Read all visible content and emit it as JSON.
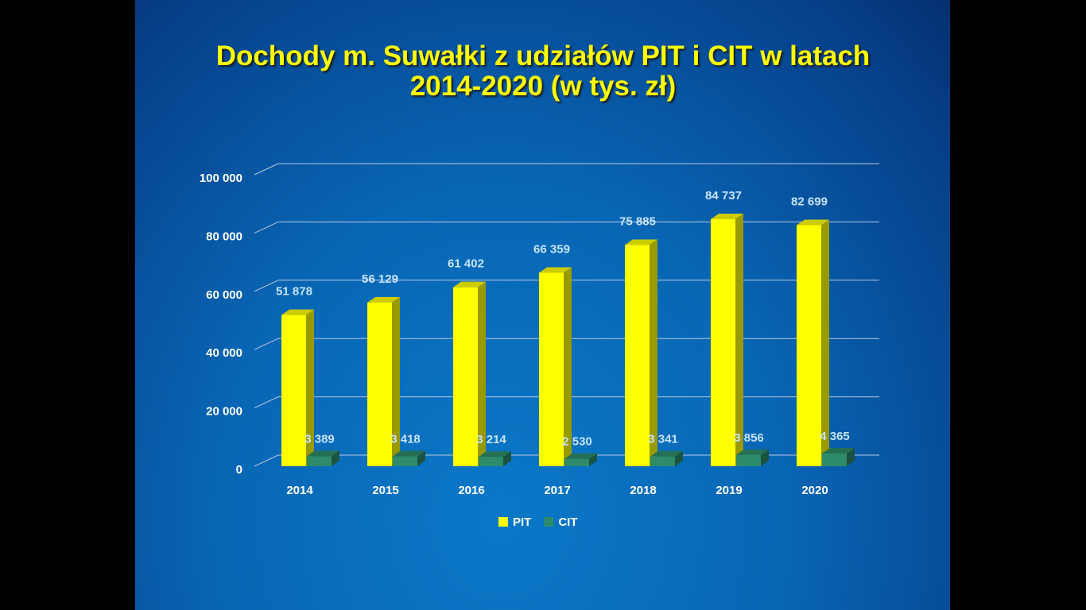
{
  "chart_data": {
    "type": "bar3d",
    "title": "Dochody m. Suwałki z udziałów PIT i CIT w latach 2014-2020 (w tys. zł)",
    "categories": [
      "2014",
      "2015",
      "2016",
      "2017",
      "2018",
      "2019",
      "2020"
    ],
    "series": [
      {
        "name": "PIT",
        "color": "#ffff00",
        "values": [
          51878,
          56129,
          61402,
          66359,
          75885,
          84737,
          82699
        ],
        "value_labels": [
          "51 878",
          "56 129",
          "61 402",
          "66 359",
          "75 885",
          "84 737",
          "82 699"
        ]
      },
      {
        "name": "CIT",
        "color": "#2e8b6a",
        "values": [
          3389,
          3418,
          3214,
          2530,
          3341,
          3856,
          4365
        ],
        "value_labels": [
          "3 389",
          "3 418",
          "3 214",
          "2 530",
          "3 341",
          "3 856",
          "4 365"
        ]
      }
    ],
    "ylim": [
      0,
      100000
    ],
    "yticks": [
      0,
      {
        "value": 20000,
        "label": "20 000"
      },
      {
        "value": 40000,
        "label": "40 000"
      },
      {
        "value": 60000,
        "label": "60 000"
      },
      {
        "value": 80000,
        "label": "80 000"
      },
      {
        "value": 100000,
        "label": "100 000"
      }
    ],
    "grid": true,
    "legend": "bottom"
  }
}
